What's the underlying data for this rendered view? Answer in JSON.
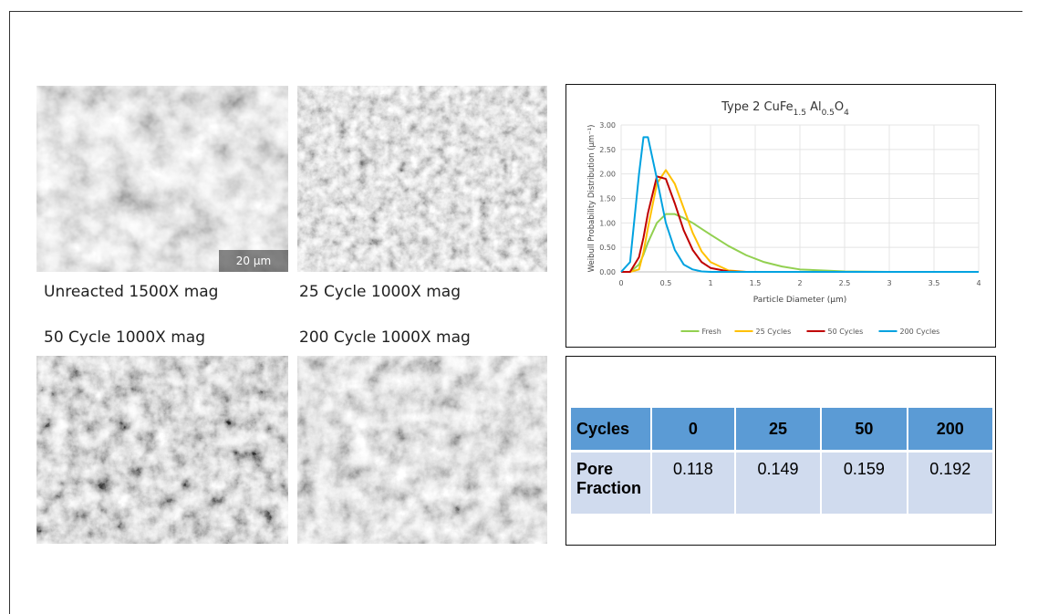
{
  "captions": [
    "Unreacted 1500X mag",
    "25 Cycle 1000X mag",
    "50 Cycle 1000X mag",
    "200 Cycle 1000X mag"
  ],
  "image_labels": [
    "20 µm"
  ],
  "chart_data": {
    "type": "line",
    "title": [
      {
        "text": "Type 2 CuFe"
      },
      {
        "text": "1.5",
        "sub": true
      },
      {
        "text": " Al"
      },
      {
        "text": "0.5",
        "sub": true
      },
      {
        "text": "O"
      },
      {
        "text": "4",
        "sub": true
      }
    ],
    "x_label": "Particle Diameter (µm)",
    "y_label": "Weibull Probability Distribution (µm⁻¹)",
    "x": [
      0,
      0.1,
      0.2,
      0.25,
      0.3,
      0.4,
      0.5,
      0.6,
      0.7,
      0.8,
      0.9,
      1.0,
      1.2,
      1.4,
      1.6,
      1.8,
      2.0,
      2.5,
      3,
      4
    ],
    "series": [
      {
        "name": "Fresh",
        "color": "#92d050",
        "values": [
          0,
          0,
          0.15,
          0.35,
          0.6,
          1.0,
          1.18,
          1.18,
          1.1,
          1.0,
          0.88,
          0.76,
          0.53,
          0.34,
          0.2,
          0.11,
          0.05,
          0.01,
          0,
          0
        ]
      },
      {
        "name": "25 Cycles",
        "color": "#ffc000",
        "values": [
          0,
          0,
          0.05,
          0.4,
          0.9,
          1.8,
          2.08,
          1.8,
          1.3,
          0.8,
          0.42,
          0.2,
          0.03,
          0,
          0,
          0,
          0,
          0,
          0,
          0
        ]
      },
      {
        "name": "50 Cycles",
        "color": "#c00000",
        "values": [
          0,
          0,
          0.3,
          0.7,
          1.2,
          1.95,
          1.9,
          1.4,
          0.85,
          0.45,
          0.2,
          0.08,
          0.01,
          0,
          0,
          0,
          0,
          0,
          0,
          0
        ]
      },
      {
        "name": "200 Cycles",
        "color": "#00a2e0",
        "values": [
          0,
          0.2,
          2.0,
          2.75,
          2.75,
          1.9,
          1.0,
          0.45,
          0.15,
          0.05,
          0.01,
          0,
          0,
          0,
          0,
          0,
          0,
          0,
          0,
          0
        ]
      }
    ],
    "xlim": [
      0,
      4
    ],
    "xticks": [
      0,
      0.5,
      1,
      1.5,
      2,
      2.5,
      3,
      3.5,
      4
    ],
    "ylim": [
      0,
      3
    ],
    "yticks": [
      {
        "value": 0,
        "label": "0.00"
      },
      {
        "value": 0.5,
        "label": "0.50"
      },
      {
        "value": 1,
        "label": "1.00"
      },
      {
        "value": 1.5,
        "label": "1.50"
      },
      {
        "value": 2,
        "label": "2.00"
      },
      {
        "value": 2.5,
        "label": "2.50"
      },
      {
        "value": 3,
        "label": "3.00"
      }
    ],
    "grid": true,
    "legend": "bottom"
  },
  "table": {
    "header": [
      "Cycles",
      "0",
      "25",
      "50",
      "200"
    ],
    "rows": [
      [
        "Pore Fraction",
        "0.118",
        "0.149",
        "0.159",
        "0.192"
      ]
    ]
  }
}
